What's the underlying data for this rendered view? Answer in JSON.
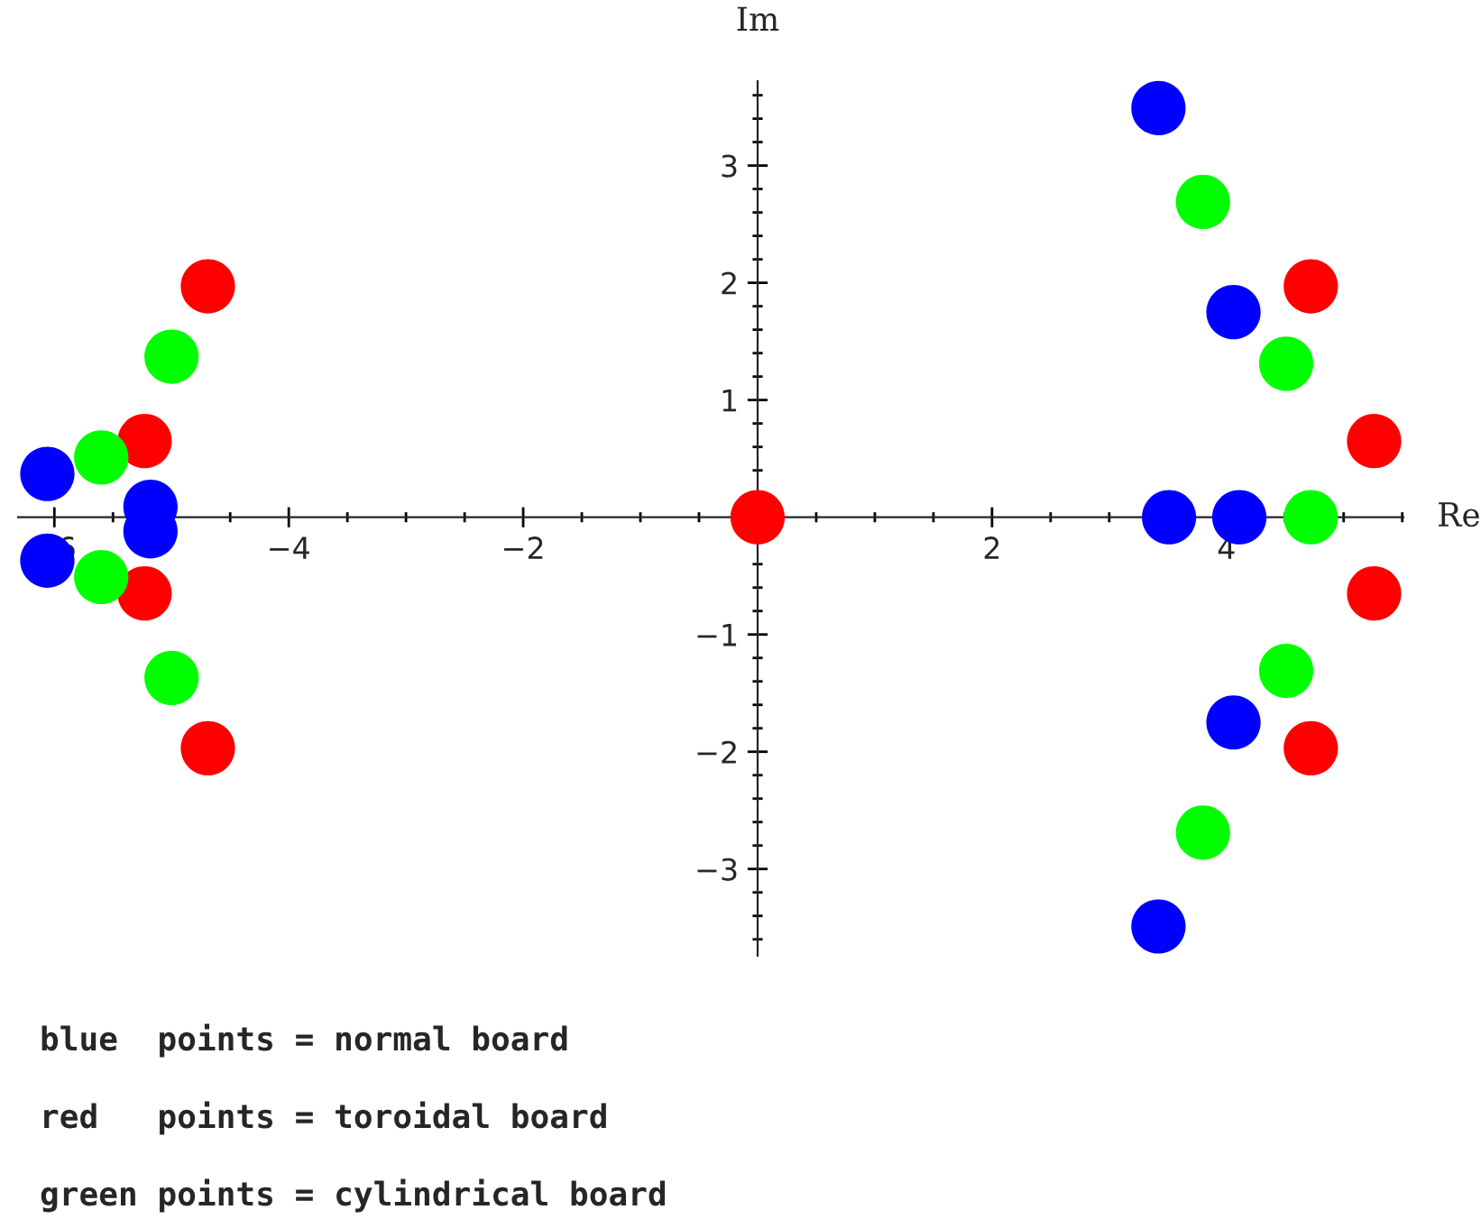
{
  "chart_data": {
    "type": "scatter",
    "xlabel": "Re",
    "ylabel": "Im",
    "xlim": [
      -6.31,
      5.51
    ],
    "ylim": [
      -3.74,
      3.72
    ],
    "xticks": [
      -6,
      -4,
      -2,
      2,
      4
    ],
    "yticks": [
      -3,
      -2,
      -1,
      1,
      2,
      3
    ],
    "marker": "circle",
    "grid": false,
    "legend": false,
    "series": [
      {
        "color": "#0000ff",
        "x": [
          3.42,
          4.06,
          3.51,
          4.11,
          4.06,
          3.42,
          -6.06,
          -6.06,
          -5.18,
          -5.18
        ],
        "values": [
          3.49,
          1.75,
          0,
          0,
          -1.75,
          -3.49,
          0.37,
          -0.37,
          0.09,
          -0.12
        ]
      },
      {
        "color": "#ff0000",
        "x": [
          0,
          4.72,
          5.26,
          5.26,
          4.72,
          -4.69,
          -5.23,
          -5.23,
          -4.69
        ],
        "values": [
          0,
          1.97,
          0.65,
          -0.65,
          -1.97,
          1.97,
          0.65,
          -0.65,
          -1.97
        ]
      },
      {
        "color": "#00ff00",
        "x": [
          3.8,
          4.51,
          4.72,
          4.51,
          3.8,
          -5.0,
          -5.6,
          -5.6,
          -5.0
        ],
        "values": [
          2.69,
          1.31,
          0,
          -1.31,
          -2.69,
          1.37,
          0.51,
          -0.51,
          -1.37
        ]
      }
    ],
    "annotations": [
      "blue  points = normal board",
      "red   points = toroidal board",
      "green points = cylindrical board"
    ]
  }
}
